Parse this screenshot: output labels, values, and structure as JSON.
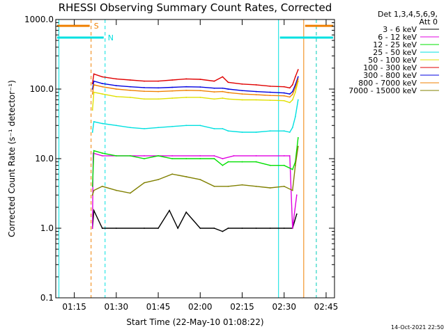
{
  "chart_data": {
    "type": "line",
    "title": "RHESSI Observing Summary Count Rates, Corrected",
    "xlabel": "Start Time (22-May-10 01:08:22)",
    "ylabel": "Corrected Count Rate (s⁻¹ detector⁻¹)",
    "y_scale": "log",
    "ylim": [
      0.1,
      1000
    ],
    "xlim": [
      "01:08:22",
      "02:48:00"
    ],
    "x_ticks": [
      "01:15",
      "01:30",
      "01:45",
      "02:00",
      "02:15",
      "02:30",
      "02:45"
    ],
    "y_ticks": [
      "0.1",
      "1.0",
      "10.0",
      "100.0",
      "1000.0"
    ],
    "legend_header": [
      "Det 1,3,4,5,6,9,",
      "Att 0"
    ],
    "legend_position": "right",
    "series": [
      {
        "name": "3 - 6 keV",
        "color": "#000000",
        "x": [
          "01:21:30",
          "01:22:00",
          "01:25",
          "01:30",
          "01:40",
          "01:45",
          "01:49",
          "01:52",
          "01:55",
          "02:00",
          "02:05",
          "02:08",
          "02:10",
          "02:15",
          "02:20",
          "02:25",
          "02:30",
          "02:33",
          "02:34:30"
        ],
        "y": [
          1.0,
          1.8,
          1.0,
          1.0,
          1.0,
          1.0,
          1.8,
          1.0,
          1.7,
          1.0,
          1.0,
          0.9,
          1.0,
          1.0,
          1.0,
          1.0,
          1.0,
          1.0,
          1.6
        ]
      },
      {
        "name": "6 - 12 keV",
        "color": "#e000e0",
        "x": [
          "01:21:30",
          "01:21:45",
          "01:25",
          "01:30",
          "01:40",
          "01:50",
          "02:00",
          "02:05",
          "02:08",
          "02:12",
          "02:20",
          "02:30",
          "02:32",
          "02:33",
          "02:34:30"
        ],
        "y": [
          1.0,
          12,
          11,
          11,
          11,
          11,
          11,
          11,
          10,
          11,
          11,
          11,
          11,
          1.0,
          3.0
        ]
      },
      {
        "name": "12 - 25 keV",
        "color": "#00e000",
        "x": [
          "01:21:30",
          "01:22",
          "01:25",
          "01:30",
          "01:35",
          "01:40",
          "01:45",
          "01:50",
          "01:55",
          "02:00",
          "02:05",
          "02:08",
          "02:10",
          "02:15",
          "02:20",
          "02:25",
          "02:30",
          "02:33",
          "02:34",
          "02:35"
        ],
        "y": [
          4,
          13,
          12,
          11,
          11,
          10,
          11,
          10,
          10,
          10,
          10,
          8,
          9,
          9,
          9,
          8,
          8,
          7,
          9,
          20
        ]
      },
      {
        "name": "25 - 50 keV",
        "color": "#00e0e0",
        "x": [
          "01:21:30",
          "01:22",
          "01:25",
          "01:30",
          "01:35",
          "01:40",
          "01:45",
          "01:50",
          "01:55",
          "02:00",
          "02:05",
          "02:08",
          "02:10",
          "02:15",
          "02:20",
          "02:25",
          "02:30",
          "02:32",
          "02:33",
          "02:34",
          "02:35"
        ],
        "y": [
          24,
          34,
          32,
          30,
          28,
          27,
          28,
          29,
          30,
          30,
          27,
          27,
          25,
          24,
          24,
          25,
          25,
          24,
          28,
          40,
          70
        ]
      },
      {
        "name": "50 - 100 keV",
        "color": "#e0e000",
        "x": [
          "01:21:30",
          "01:22",
          "01:25",
          "01:30",
          "01:35",
          "01:40",
          "01:45",
          "01:50",
          "01:55",
          "02:00",
          "02:05",
          "02:08",
          "02:10",
          "02:15",
          "02:20",
          "02:25",
          "02:30",
          "02:32",
          "02:33",
          "02:34",
          "02:35"
        ],
        "y": [
          50,
          90,
          85,
          78,
          76,
          72,
          72,
          74,
          76,
          76,
          72,
          74,
          72,
          70,
          70,
          69,
          68,
          64,
          70,
          90,
          130
        ]
      },
      {
        "name": "100 - 300 keV",
        "color": "#e00000",
        "x": [
          "01:21:30",
          "01:22",
          "01:25",
          "01:30",
          "01:35",
          "01:40",
          "01:45",
          "01:50",
          "01:55",
          "02:00",
          "02:05",
          "02:08",
          "02:10",
          "02:15",
          "02:20",
          "02:25",
          "02:30",
          "02:32",
          "02:33",
          "02:34",
          "02:35"
        ],
        "y": [
          120,
          165,
          150,
          140,
          135,
          130,
          130,
          135,
          140,
          138,
          130,
          150,
          125,
          118,
          115,
          110,
          108,
          104,
          115,
          150,
          190
        ]
      },
      {
        "name": "300 - 800 keV",
        "color": "#0000e0",
        "x": [
          "01:21:30",
          "01:22",
          "01:25",
          "01:30",
          "01:35",
          "01:40",
          "01:45",
          "01:50",
          "01:55",
          "02:00",
          "02:05",
          "02:08",
          "02:10",
          "02:15",
          "02:20",
          "02:25",
          "02:30",
          "02:32",
          "02:33",
          "02:34",
          "02:35"
        ],
        "y": [
          100,
          130,
          120,
          112,
          108,
          105,
          104,
          106,
          108,
          107,
          103,
          103,
          100,
          95,
          92,
          90,
          88,
          85,
          92,
          115,
          150
        ]
      },
      {
        "name": "800 - 7000 keV",
        "color": "#f08000",
        "x": [
          "01:21:30",
          "01:22",
          "01:25",
          "01:30",
          "01:35",
          "01:40",
          "01:45",
          "01:50",
          "01:55",
          "02:00",
          "02:05",
          "02:08",
          "02:10",
          "02:15",
          "02:20",
          "02:25",
          "02:30",
          "02:32",
          "02:33",
          "02:34",
          "02:35"
        ],
        "y": [
          85,
          115,
          108,
          100,
          96,
          93,
          92,
          94,
          96,
          95,
          91,
          92,
          89,
          85,
          83,
          81,
          80,
          77,
          84,
          105,
          140
        ]
      },
      {
        "name": "7000 - 15000 keV",
        "color": "#808000",
        "x": [
          "01:21:30",
          "01:22",
          "01:25",
          "01:30",
          "01:35",
          "01:40",
          "01:45",
          "01:50",
          "01:55",
          "02:00",
          "02:05",
          "02:10",
          "02:15",
          "02:20",
          "02:25",
          "02:30",
          "02:33",
          "02:34",
          "02:35"
        ],
        "y": [
          3,
          3.5,
          4,
          3.5,
          3.2,
          4.5,
          5,
          6,
          5.5,
          5,
          4,
          4,
          4.2,
          4,
          3.8,
          4,
          3.5,
          8,
          15
        ]
      }
    ],
    "state_bars": [
      {
        "label": "S",
        "color": "#f08000",
        "x": [
          [
            "01:08:22",
            "01:21:00"
          ],
          [
            "02:37:00",
            "02:48:00"
          ]
        ],
        "level": 810
      },
      {
        "label": "N",
        "color": "#00e0e0",
        "x": [
          [
            "01:08:22",
            "01:26:00"
          ],
          [
            "02:28:00",
            "02:48:00"
          ]
        ],
        "level": 550
      }
    ],
    "vertical_lines": [
      {
        "x": "01:09:30",
        "color": "#00e0e0",
        "style": "solid"
      },
      {
        "x": "01:21:00",
        "color": "#f08000",
        "style": "dashed"
      },
      {
        "x": "01:26:00",
        "color": "#00e0e0",
        "style": "dashed"
      },
      {
        "x": "02:28:00",
        "color": "#00e0e0",
        "style": "solid"
      },
      {
        "x": "02:37:00",
        "color": "#f08000",
        "style": "solid"
      },
      {
        "x": "02:41:30",
        "color": "#f08000",
        "style": "dashed"
      },
      {
        "x": "02:41:30",
        "color": "#00e0e0",
        "style": "dashed"
      }
    ]
  },
  "footer": {
    "timestamp": "14-Oct-2021 22:50"
  }
}
